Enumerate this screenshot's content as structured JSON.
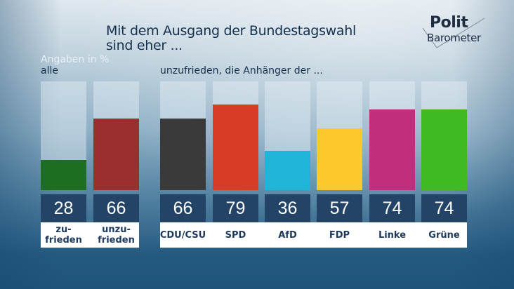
{
  "header": {
    "title_line1": "Mit dem Ausgang der Bundestagswahl",
    "title_line2": "sind eher ...",
    "logo_top": "Polit",
    "logo_bottom": "Barometer"
  },
  "chart_data": [
    {
      "type": "bar",
      "title": "Mit dem Ausgang der Bundestagswahl sind eher ...",
      "unit_note": "Angaben in %",
      "group_label": "alle",
      "categories": [
        "zu-\nfrieden",
        "unzu-\nfrieden"
      ],
      "category_lines": [
        [
          "zu-",
          "frieden"
        ],
        [
          "unzu-",
          "frieden"
        ]
      ],
      "values": [
        28,
        66
      ],
      "colors": [
        "#1e6e22",
        "#9a2f30"
      ],
      "ylim": [
        0,
        100
      ]
    },
    {
      "type": "bar",
      "group_label": "unzufrieden, die Anhänger der ...",
      "categories": [
        "CDU/CSU",
        "SPD",
        "AfD",
        "FDP",
        "Linke",
        "Grüne"
      ],
      "values": [
        66,
        79,
        36,
        57,
        74,
        74
      ],
      "colors": [
        "#3a3a3a",
        "#d83c26",
        "#1fb4d8",
        "#fcc92c",
        "#c22d7c",
        "#40ba22"
      ],
      "ylim": [
        0,
        100
      ]
    }
  ]
}
